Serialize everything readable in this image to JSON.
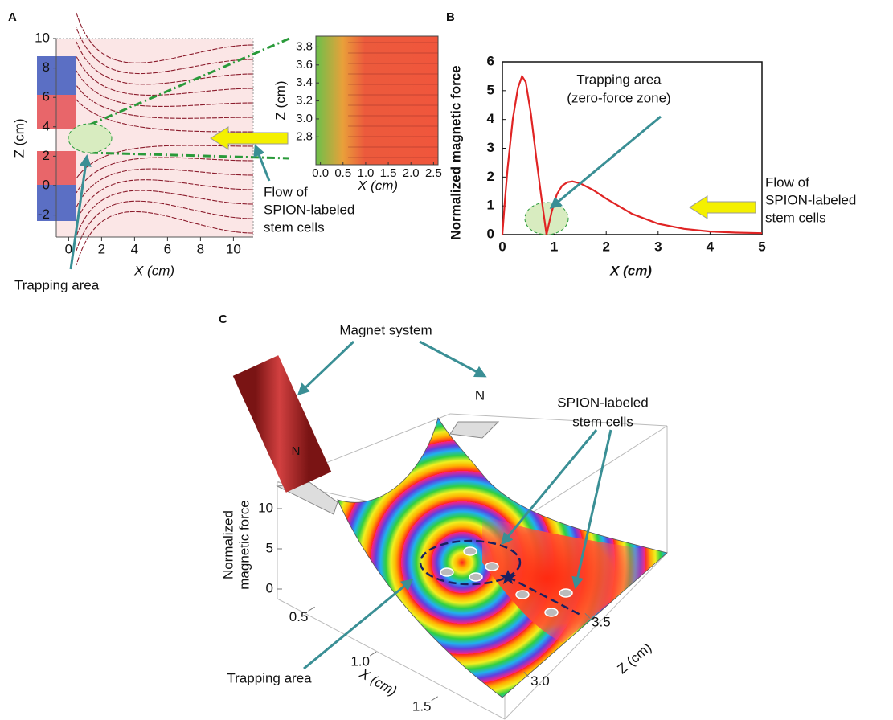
{
  "chart_data": [
    {
      "type": "field",
      "panel": "A",
      "xlabel": "X (cm)",
      "ylabel": "Z (cm)",
      "xlim": [
        -0.75,
        11.2
      ],
      "ylim": [
        -3.5,
        10
      ],
      "xticks": [
        0,
        2,
        4,
        6,
        8,
        10
      ],
      "yticks": [
        -2,
        0,
        2,
        4,
        6,
        8,
        10
      ],
      "annotations": {
        "trap": [
          "Trapping area"
        ],
        "flow": [
          "Flow of",
          "SPION-labeled",
          "stem cells"
        ]
      },
      "inset": {
        "xlabel": "X (cm)",
        "ylabel": "Z (cm)",
        "xlim": [
          -0.1,
          2.6
        ],
        "ylim": [
          2.49,
          3.92
        ],
        "xticks": [
          {
            "value": 0,
            "label": "0.0"
          },
          0.5,
          {
            "value": 1,
            "label": "1.0"
          },
          1.5,
          {
            "value": 2,
            "label": "2.0"
          },
          2.5
        ],
        "yticks": [
          2.8,
          {
            "value": 3,
            "label": "3.0"
          },
          3.2,
          3.4,
          3.6,
          3.8
        ]
      }
    },
    {
      "type": "line",
      "panel": "B",
      "xlabel": "X (cm)",
      "ylabel": "Normalized magnetic force",
      "xlim": [
        0,
        5
      ],
      "ylim": [
        0,
        6
      ],
      "xticks": [
        0,
        1,
        2,
        3,
        4,
        5
      ],
      "yticks": [
        0,
        1,
        2,
        3,
        4,
        5,
        6
      ],
      "color": "#e02424",
      "x": [
        0,
        0.05,
        0.1,
        0.2,
        0.3,
        0.38,
        0.45,
        0.55,
        0.65,
        0.75,
        0.85,
        0.95,
        1.05,
        1.15,
        1.25,
        1.35,
        1.5,
        1.75,
        2,
        2.5,
        3,
        3.5,
        4,
        4.5,
        5
      ],
      "values": [
        0,
        1.2,
        2.3,
        4.0,
        5.1,
        5.5,
        5.3,
        4.2,
        2.7,
        1.3,
        0,
        0.8,
        1.4,
        1.7,
        1.82,
        1.85,
        1.78,
        1.55,
        1.25,
        0.72,
        0.38,
        0.2,
        0.11,
        0.07,
        0.05
      ],
      "annotations": {
        "trap": [
          "Trapping area",
          "(zero-force zone)"
        ],
        "flow": [
          "Flow of",
          "SPION-labeled",
          "stem cells"
        ]
      }
    },
    {
      "type": "surface",
      "panel": "C",
      "xlabel": "X (cm)",
      "ylabel": "Z (cm)",
      "zlabel": [
        "Normalized",
        "magnetic force"
      ],
      "xlim": [
        0.3,
        1.6
      ],
      "xticks": [
        0.5,
        {
          "value": 1,
          "label": "1.0"
        },
        1.5
      ],
      "ylim": [
        2.75,
        3.85
      ],
      "yticks": [
        {
          "value": 3,
          "label": "3.0"
        },
        3.5
      ],
      "zlim": [
        0,
        12
      ],
      "zticks": [
        0,
        5,
        10
      ],
      "annotations": {
        "magnet": [
          "Magnet system"
        ],
        "cells": [
          "SPION-labeled",
          "stem cells"
        ],
        "trap": [
          "Trapping area"
        ],
        "poles": [
          "N",
          "N"
        ]
      }
    }
  ]
}
